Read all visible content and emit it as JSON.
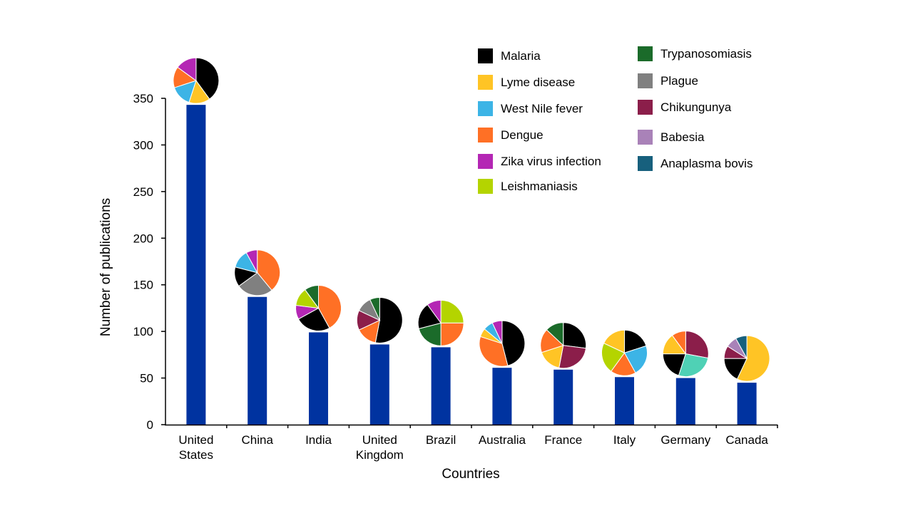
{
  "chart_data": {
    "type": "bar",
    "xlabel": "Countries",
    "ylabel": "Number of publications",
    "ylim": [
      0,
      350
    ],
    "yticks": [
      0,
      50,
      100,
      150,
      200,
      250,
      300,
      350
    ],
    "grid": false,
    "legend_position": "top-right",
    "bar_color": "#0033A0",
    "categories": [
      [
        "United",
        "States"
      ],
      [
        "China"
      ],
      [
        "India"
      ],
      [
        "United",
        "Kingdom"
      ],
      [
        "Brazil"
      ],
      [
        "Australia"
      ],
      [
        "France"
      ],
      [
        "Italy"
      ],
      [
        "Germany"
      ],
      [
        "Canada"
      ]
    ],
    "values": [
      343,
      137,
      99,
      86,
      83,
      61,
      59,
      51,
      50,
      45
    ],
    "diseases": [
      {
        "name": "Malaria",
        "color": "#000000"
      },
      {
        "name": "Lyme disease",
        "color": "#FFC425"
      },
      {
        "name": "West Nile fever",
        "color": "#3CB4E6"
      },
      {
        "name": "Dengue",
        "color": "#FF7025"
      },
      {
        "name": "Zika virus infection",
        "color": "#B427B4"
      },
      {
        "name": "Leishmaniasis",
        "color": "#B4D400"
      },
      {
        "name": "Trypanosomiasis",
        "color": "#1B6B2A"
      },
      {
        "name": "Plague",
        "color": "#808080"
      },
      {
        "name": "Chikungunya",
        "color": "#8B1E4A"
      },
      {
        "name": "Babesia",
        "color": "#A982B8"
      },
      {
        "name": "Anaplasma bovis",
        "color": "#17607D"
      }
    ],
    "other_color": "#4FD1B5",
    "pies": [
      [
        {
          "d": "Malaria",
          "v": 40
        },
        {
          "d": "Lyme disease",
          "v": 15
        },
        {
          "d": "West Nile fever",
          "v": 15
        },
        {
          "d": "Dengue",
          "v": 15
        },
        {
          "d": "Zika virus infection",
          "v": 15
        }
      ],
      [
        {
          "d": "Dengue",
          "v": 39
        },
        {
          "d": "Plague",
          "v": 26
        },
        {
          "d": "Malaria",
          "v": 14
        },
        {
          "d": "West Nile fever",
          "v": 13
        },
        {
          "d": "Zika virus infection",
          "v": 8
        }
      ],
      [
        {
          "d": "Dengue",
          "v": 42
        },
        {
          "d": "Malaria",
          "v": 25
        },
        {
          "d": "Zika virus infection",
          "v": 10
        },
        {
          "d": "Leishmaniasis",
          "v": 13
        },
        {
          "d": "Trypanosomiasis",
          "v": 10
        }
      ],
      [
        {
          "d": "Malaria",
          "v": 53
        },
        {
          "d": "Dengue",
          "v": 15
        },
        {
          "d": "Chikungunya",
          "v": 14
        },
        {
          "d": "Plague",
          "v": 11
        },
        {
          "d": "Trypanosomiasis",
          "v": 7
        }
      ],
      [
        {
          "d": "Leishmaniasis",
          "v": 25
        },
        {
          "d": "Dengue",
          "v": 25
        },
        {
          "d": "Trypanosomiasis",
          "v": 21
        },
        {
          "d": "Malaria",
          "v": 19
        },
        {
          "d": "Zika virus infection",
          "v": 10
        }
      ],
      [
        {
          "d": "Malaria",
          "v": 46
        },
        {
          "d": "Dengue",
          "v": 34
        },
        {
          "d": "Lyme disease",
          "v": 6
        },
        {
          "d": "West Nile fever",
          "v": 7
        },
        {
          "d": "Zika virus infection",
          "v": 7
        }
      ],
      [
        {
          "d": "Malaria",
          "v": 27
        },
        {
          "d": "Chikungunya",
          "v": 26
        },
        {
          "d": "Lyme disease",
          "v": 17
        },
        {
          "d": "Dengue",
          "v": 17
        },
        {
          "d": "Trypanosomiasis",
          "v": 13
        }
      ],
      [
        {
          "d": "Malaria",
          "v": 20
        },
        {
          "d": "West Nile fever",
          "v": 22
        },
        {
          "d": "Dengue",
          "v": 18
        },
        {
          "d": "Leishmaniasis",
          "v": 22
        },
        {
          "d": "Lyme disease",
          "v": 18
        }
      ],
      [
        {
          "d": "Chikungunya",
          "v": 28
        },
        {
          "d": "other",
          "v": 27
        },
        {
          "d": "Malaria",
          "v": 20
        },
        {
          "d": "Lyme disease",
          "v": 15
        },
        {
          "d": "Dengue",
          "v": 10
        }
      ],
      [
        {
          "d": "Lyme disease",
          "v": 57
        },
        {
          "d": "Malaria",
          "v": 18
        },
        {
          "d": "Chikungunya",
          "v": 9
        },
        {
          "d": "Babesia",
          "v": 8
        },
        {
          "d": "Anaplasma bovis",
          "v": 8
        }
      ]
    ]
  }
}
